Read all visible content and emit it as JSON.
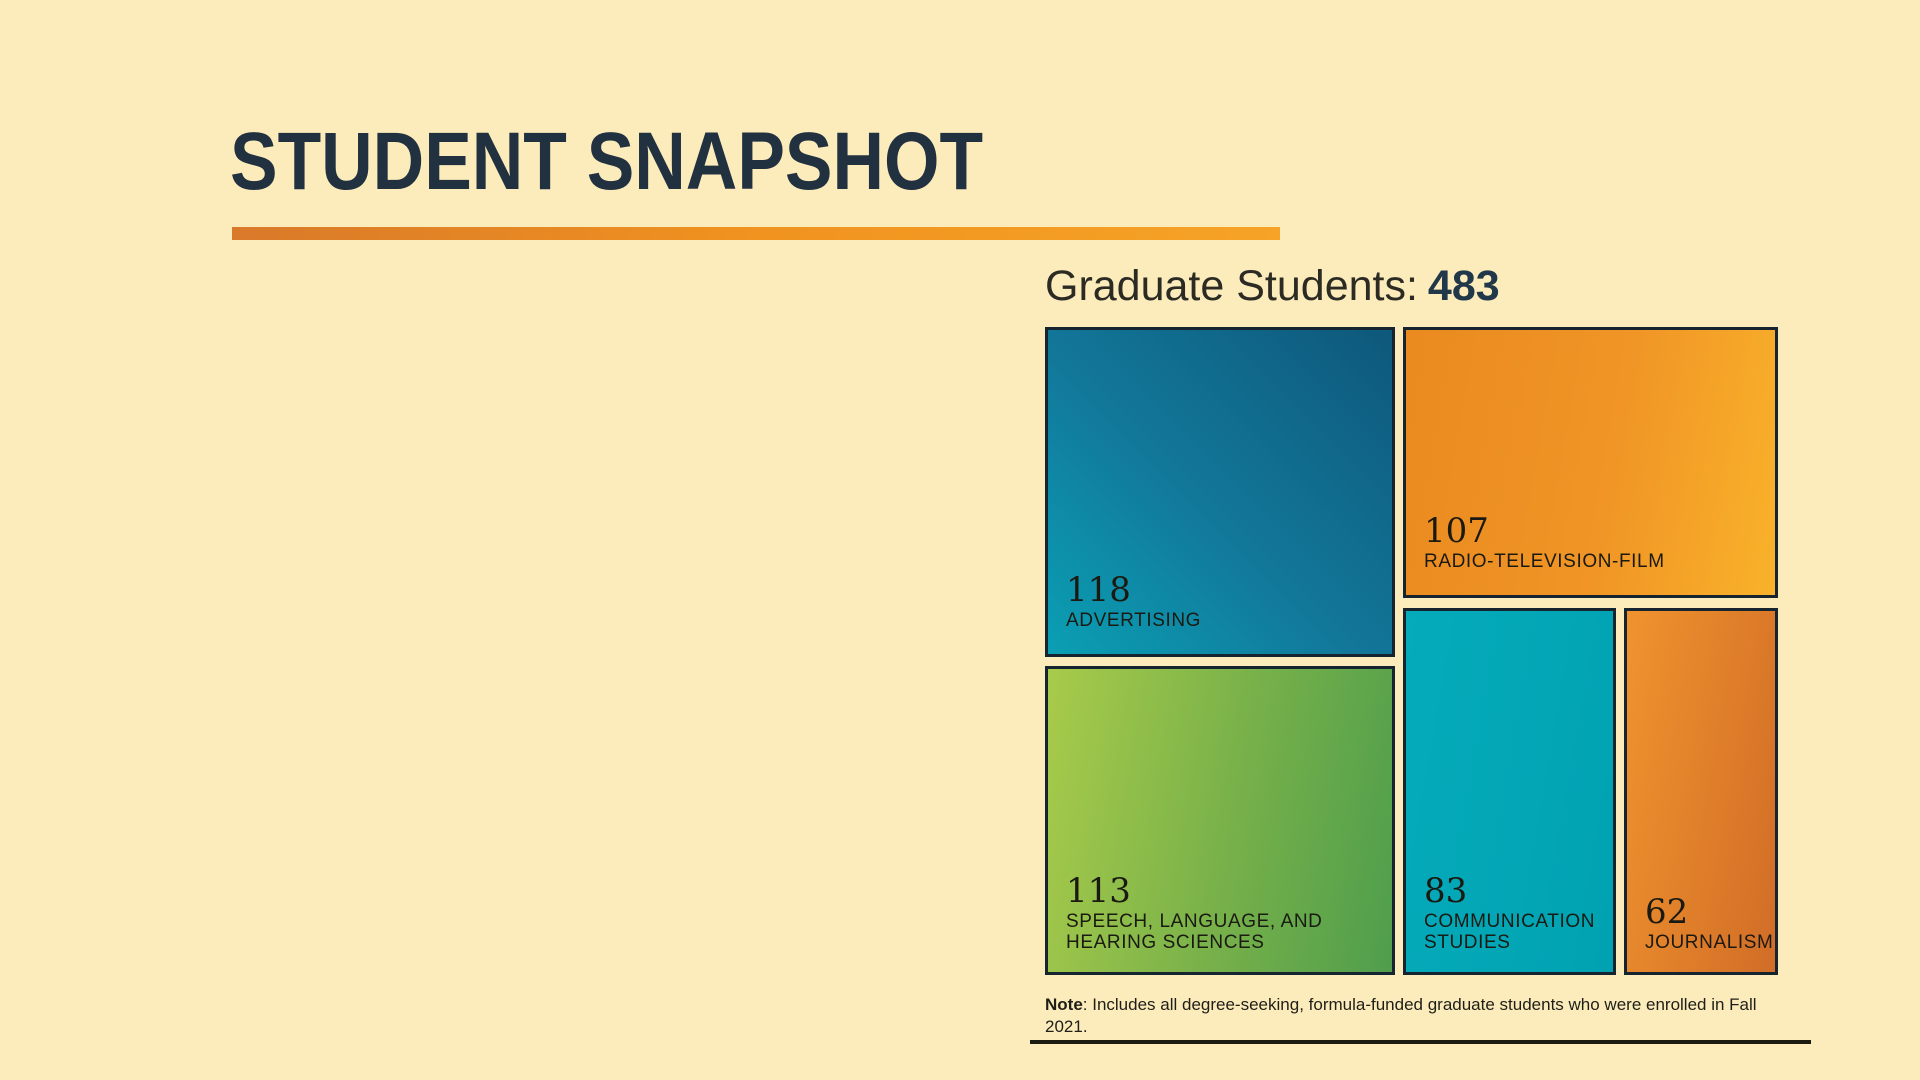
{
  "background_color": "#fcecbb",
  "header": {
    "title": "STUDENT SNAPSHOT",
    "title_color": "#223140",
    "accent_rule_colors": [
      "#d9792a",
      "#f6a327"
    ]
  },
  "chart_heading": {
    "label": "Graduate Students:",
    "value": "483"
  },
  "chart_data": {
    "type": "treemap",
    "title": "Graduate Students: 483",
    "total": 483,
    "units": "graduate students",
    "legend": "none",
    "border_color": "#16242f",
    "items": [
      {
        "label": "ADVERTISING",
        "value": 118,
        "colors": [
          "#0a9fb4",
          "#0e587b"
        ]
      },
      {
        "label": "RADIO-TELEVISION-FILM",
        "value": 107,
        "colors": [
          "#ea8a20",
          "#f9b22a"
        ]
      },
      {
        "label": "SPEECH, LANGUAGE, AND HEARING SCIENCES",
        "value": 113,
        "colors": [
          "#a8cb4a",
          "#4f9e4c"
        ]
      },
      {
        "label": "COMMUNICATION STUDIES",
        "value": 83,
        "colors": [
          "#05abbb",
          "#00a2b1"
        ]
      },
      {
        "label": "JOURNALISM",
        "value": 62,
        "colors": [
          "#f0932e",
          "#d16d27"
        ]
      }
    ]
  },
  "note": {
    "label": "Note",
    "text": ": Includes all degree-seeking, formula-funded graduate students who were enrolled in Fall 2021."
  }
}
